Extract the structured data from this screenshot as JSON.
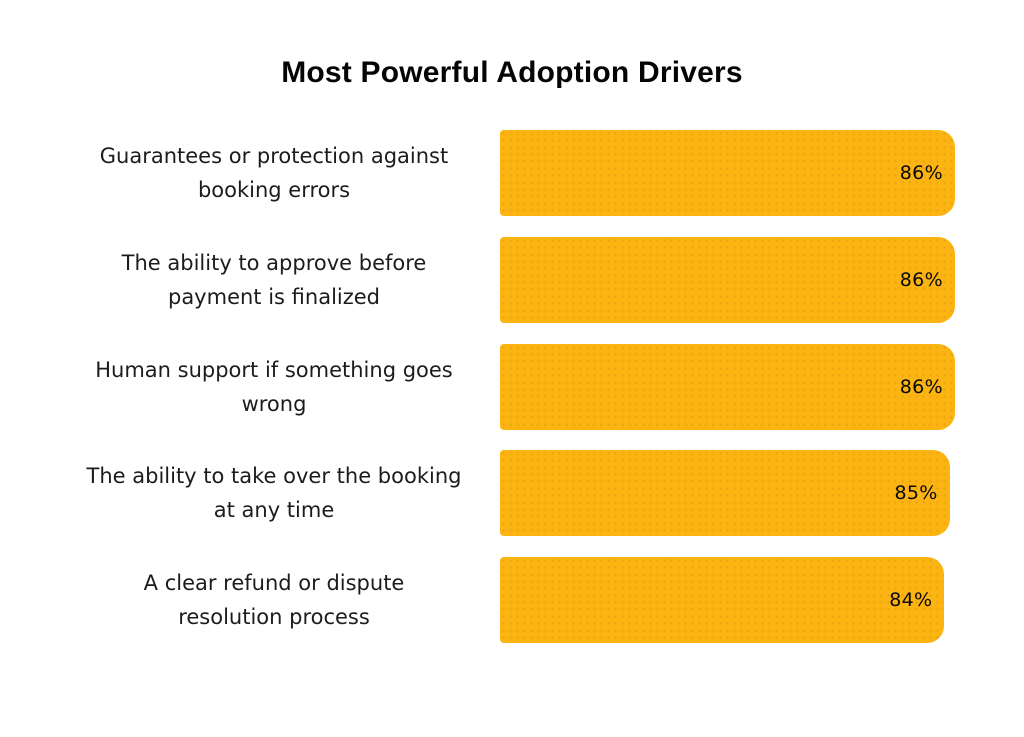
{
  "title": "Most Powerful Adoption Drivers",
  "colors": {
    "background": "#FFFFFF",
    "bar": "#FCB413",
    "title_text": "#050505",
    "label_text": "#1C1C1C",
    "value_text": "#0A0A0A"
  },
  "chart_data": {
    "type": "bar",
    "orientation": "horizontal",
    "title": "Most Powerful Adoption Drivers",
    "categories": [
      "Guarantees or protection against booking errors",
      "The ability to approve before payment is finalized",
      "Human support if something goes wrong",
      "The ability to take over the booking at any time",
      "A clear refund or dispute resolution process"
    ],
    "values": [
      86,
      86,
      86,
      85,
      84
    ],
    "value_labels": [
      "86%",
      "86%",
      "86%",
      "85%",
      "84%"
    ],
    "label_lines": [
      [
        "Guarantees or protection against",
        "booking errors"
      ],
      [
        "The ability to approve before",
        "payment is finalized"
      ],
      [
        "Human support if something goes",
        "wrong"
      ],
      [
        "The ability to take over the booking",
        "at any time"
      ],
      [
        "A clear refund or dispute",
        "resolution process"
      ]
    ],
    "xlim": [
      0,
      100
    ],
    "grid": false,
    "legend": false,
    "value_label_position": "inside-end",
    "bar_color": "#FCB413"
  }
}
